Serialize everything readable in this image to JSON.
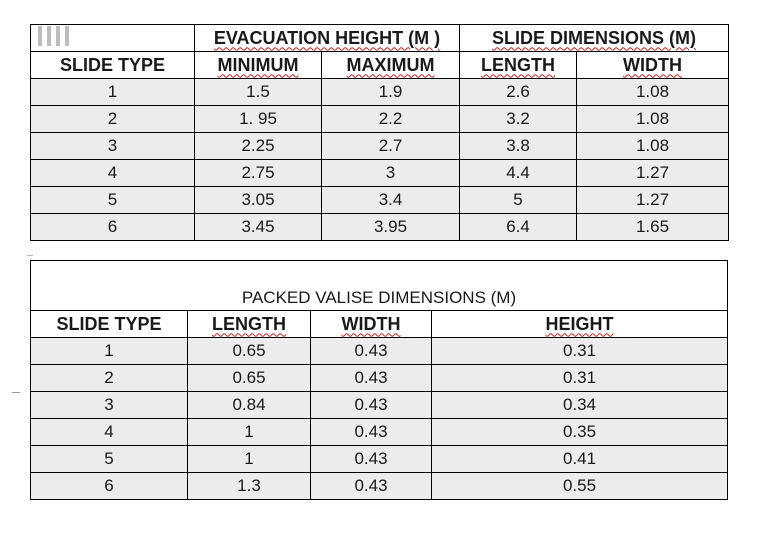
{
  "table1": {
    "group_headers": [
      "EVACUATION HEIGHT (M )",
      "SLIDE DIMENSIONS (M)"
    ],
    "columns": [
      "SLIDE TYPE",
      "MINIMUM",
      "MAXIMUM",
      "LENGTH",
      "WIDTH"
    ],
    "rows": [
      [
        "1",
        "1.5",
        "1.9",
        "2.6",
        "1.08"
      ],
      [
        "2",
        "1. 95",
        "2.2",
        "3.2",
        "1.08"
      ],
      [
        "3",
        "2.25",
        "2.7",
        "3.8",
        "1.08"
      ],
      [
        "4",
        "2.75",
        "3",
        "4.4",
        "1.27"
      ],
      [
        "5",
        "3.05",
        "3.4",
        "5",
        "1.27"
      ],
      [
        "6",
        "3.45",
        "3.95",
        "6.4",
        "1.65"
      ]
    ]
  },
  "table2": {
    "title": "PACKED VALISE DIMENSIONS (M)",
    "columns": [
      "SLIDE TYPE",
      "LENGTH",
      "WIDTH",
      "HEIGHT"
    ],
    "rows": [
      [
        "1",
        "0.65",
        "0.43",
        "0.31"
      ],
      [
        "2",
        "0.65",
        "0.43",
        "0.31"
      ],
      [
        "3",
        "0.84",
        "0.43",
        "0.34"
      ],
      [
        "4",
        "1",
        "0.43",
        "0.35"
      ],
      [
        "5",
        "1",
        "0.43",
        "0.41"
      ],
      [
        "6",
        "1.3",
        "0.43",
        "0.55"
      ]
    ]
  }
}
